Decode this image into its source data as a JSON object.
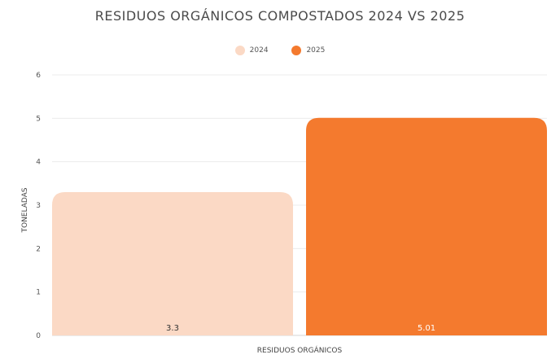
{
  "chart_data": {
    "type": "bar",
    "title": "RESIDUOS ORGÁNICOS COMPOSTADOS 2024 VS 2025",
    "categories": [
      "RESIDUOS ORGÁNICOS"
    ],
    "series": [
      {
        "name": "2024",
        "values": [
          3.3
        ],
        "label": "3.3",
        "color": "#fbd9c5",
        "label_color": "#333333"
      },
      {
        "name": "2025",
        "values": [
          5.01
        ],
        "label": "5.01",
        "color": "#f47a2e",
        "label_color": "#ffffff"
      }
    ],
    "xlabel": "RESIDUOS ORGÁNICOS",
    "ylabel": "TONELADAS",
    "ylim": [
      0,
      6
    ],
    "yticks": [
      "0",
      "1",
      "2",
      "3",
      "4",
      "5",
      "6"
    ],
    "grid": true,
    "legend_position": "top-center"
  }
}
